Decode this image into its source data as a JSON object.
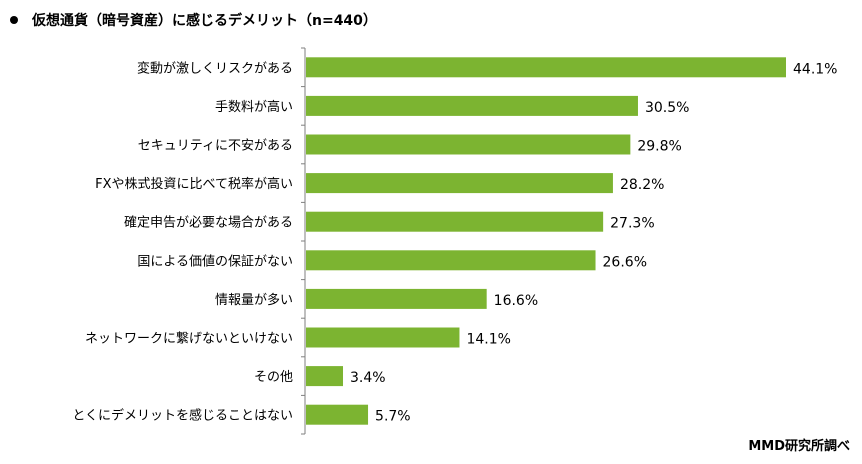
{
  "title": "仮想通貨（暗号資産）に感じるデメリット（n=440）",
  "source": "MMD研究所調べ",
  "colors": {
    "bar": "#7cb431",
    "axis": "#7f7f7f",
    "text": "#000000"
  },
  "chart_data": {
    "type": "bar",
    "orientation": "horizontal",
    "title": "仮想通貨（暗号資産）に感じるデメリット（n=440）",
    "xlabel": "",
    "ylabel": "",
    "value_suffix": "%",
    "xlim": [
      0,
      50
    ],
    "grid": false,
    "legend": "none",
    "categories": [
      "変動が激しくリスクがある",
      "手数料が高い",
      "セキュリティに不安がある",
      "FXや株式投資に比べて税率が高い",
      "確定申告が必要な場合がある",
      "国による価値の保証がない",
      "情報量が多い",
      "ネットワークに繋げないといけない",
      "その他",
      "とくにデメリットを感じることはない"
    ],
    "values": [
      44.1,
      30.5,
      29.8,
      28.2,
      27.3,
      26.6,
      16.6,
      14.1,
      3.4,
      5.7
    ],
    "value_labels": [
      "44.1%",
      "30.5%",
      "29.8%",
      "28.2%",
      "27.3%",
      "26.6%",
      "16.6%",
      "14.1%",
      "3.4%",
      "5.7%"
    ]
  }
}
